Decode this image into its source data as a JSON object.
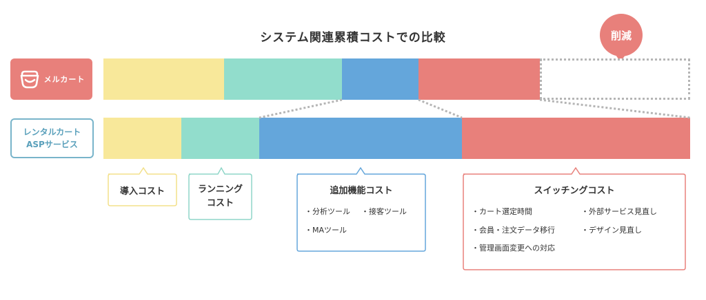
{
  "title": "システム関連累積コストでの比較",
  "reduction_badge": "削減",
  "row_labels": {
    "melcart": "メルカート",
    "rental_line1": "レンタルカート",
    "rental_line2": "ASPサービス"
  },
  "categories": [
    "導入コスト",
    "ランニングコスト",
    "追加機能コスト",
    "スイッチングコスト"
  ],
  "callouts": {
    "introduction": {
      "title": "導入コスト"
    },
    "running": {
      "title_line1": "ランニング",
      "title_line2": "コスト"
    },
    "additional": {
      "title": "追加機能コスト",
      "items": [
        "・分析ツール",
        "・接客ツール",
        "・MAツール"
      ]
    },
    "switching": {
      "title": "スイッチングコスト",
      "items": [
        "・カート選定時間",
        "・外部サービス見直し",
        "・会員・注文データ移行",
        "・デザイン見直し",
        "・管理画面変更への対応"
      ]
    }
  },
  "colors": {
    "yellow": "#f8e89a",
    "teal": "#92ddcc",
    "blue": "#64a6db",
    "red": "#e8807b",
    "rental_border": "#78b4ca"
  }
}
